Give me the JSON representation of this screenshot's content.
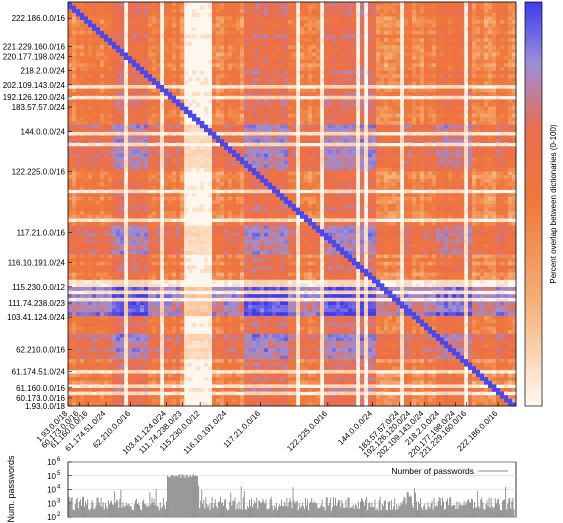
{
  "chart_data": [
    {
      "type": "heatmap",
      "title": "",
      "row_labels": [
        "222.186.0.0/16",
        "221.229.160.0/16",
        "220.177.198.0/24",
        "218.2.0.0/24",
        "202.109.143.0/24",
        "192.126.120.0/24",
        "183.57.57.0/24",
        "144.0.0.0/24",
        "122.225.0.0/16",
        "117.21.0.0/16",
        "116.10.191.0/24",
        "115.230.0.0/12",
        "111.74.238.0/23",
        "103.41.124.0/24",
        "62.210.0.0/16",
        "61.174.51.0/24",
        "61.160.0.0/16",
        "60.173.0.0/16",
        "1.93.0.0/18"
      ],
      "row_positions": [
        0.04,
        0.11,
        0.135,
        0.17,
        0.205,
        0.235,
        0.26,
        0.32,
        0.42,
        0.57,
        0.645,
        0.705,
        0.745,
        0.78,
        0.86,
        0.915,
        0.955,
        0.98,
        1.0
      ],
      "column_labels": [
        "1.93.0.0/18",
        "60.173.0.0/16",
        "61.160.0.0/16",
        "61.174.51.0/24",
        "62.210.0.0/16",
        "103.41.124.0/24",
        "111.74.238.0/23",
        "115.230.0.0/12",
        "116.10.191.0/24",
        "117.21.0.0/16",
        "122.225.0.0/16",
        "144.0.0.0/24",
        "183.57.57.0/24",
        "192.126.120.0/24",
        "202.109.143.0/24",
        "218.2.0.0/24",
        "220.177.198.0/24",
        "221.229.160.0/16",
        "222.186.0.0/16"
      ],
      "column_positions": [
        0.0,
        0.025,
        0.045,
        0.085,
        0.14,
        0.22,
        0.255,
        0.295,
        0.355,
        0.43,
        0.58,
        0.68,
        0.74,
        0.765,
        0.795,
        0.83,
        0.865,
        0.89,
        0.96
      ],
      "colorbar": {
        "label": "Percent overlap between dictionaries (0-100)",
        "min": 0,
        "max": 100,
        "stops": [
          "#fffaf2",
          "#f6b17a",
          "#ef7a3a",
          "#ec6d4c",
          "#9b8fd8",
          "#3d3bf0"
        ]
      },
      "legend": "none",
      "grid": false
    },
    {
      "type": "line",
      "title": "",
      "ylabel": "Num. passwords",
      "xlabel": "",
      "yscale": "log",
      "ylim": [
        100,
        1000000
      ],
      "y_tick_labels": [
        "10",
        "10",
        "10",
        "10",
        "10"
      ],
      "y_tick_exponents": [
        "2",
        "3",
        "4",
        "5",
        "6"
      ],
      "series": [
        {
          "name": "Number of passwords",
          "color": "#8a8a8a"
        }
      ],
      "typical_range": [
        300,
        3000
      ],
      "spike_range": [
        0.22,
        0.29
      ],
      "spike_level": 100000,
      "legend": "top-right",
      "grid": true
    }
  ]
}
